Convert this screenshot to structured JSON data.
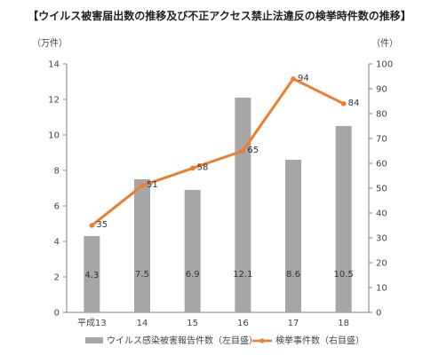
{
  "chart_data": {
    "type": "bar",
    "title": "【ウイルス被害届出数の推移及び不正アクセス禁止法違反の検挙時件数の推移】",
    "categories": [
      "平成13",
      "14",
      "15",
      "16",
      "17",
      "18"
    ],
    "series": [
      {
        "name": "ウイルス感染被害報告件数（左目盛）",
        "type": "bar",
        "axis": "left",
        "values": [
          4.3,
          7.5,
          6.9,
          12.1,
          8.6,
          10.5
        ],
        "labels": [
          "4.3",
          "7.5",
          "6.9",
          "12.1",
          "8.6",
          "10.5"
        ],
        "color": "#a6a6a6"
      },
      {
        "name": "検挙事件数（右目盛）",
        "type": "line",
        "axis": "right",
        "values": [
          35,
          51,
          58,
          65,
          94,
          84
        ],
        "labels": [
          "35",
          "51",
          "58",
          "65",
          "94",
          "84"
        ],
        "color": "#ed7d31"
      }
    ],
    "y_left": {
      "unit": "（万件）",
      "ylim": [
        0,
        14
      ],
      "ticks": [
        "0",
        "2",
        "4",
        "6",
        "8",
        "10",
        "12",
        "14"
      ]
    },
    "y_right": {
      "unit": "（件）",
      "ylim": [
        0,
        100
      ],
      "ticks": [
        "0",
        "10",
        "20",
        "30",
        "40",
        "50",
        "60",
        "70",
        "80",
        "90",
        "100"
      ]
    },
    "grid": false,
    "legend": "bottom"
  }
}
